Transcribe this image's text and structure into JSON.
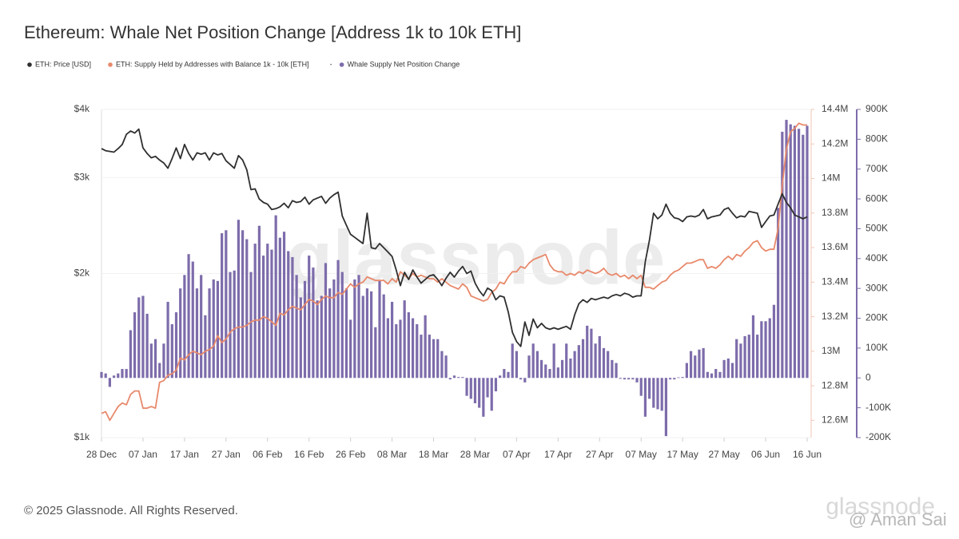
{
  "chart_data": {
    "type": "combo",
    "title": "Ethereum: Whale Net Position Change [Address 1k to 10k ETH]",
    "legend_separator": "-",
    "watermark": "glassnode",
    "footer": "© 2025 Glassnode. All Rights Reserved.",
    "footer_logo": "glassnode",
    "footer_credit": "@ Aman Sai",
    "yscale": "log",
    "grid": true,
    "categories": [
      "28 Dec",
      null,
      null,
      null,
      null,
      null,
      null,
      null,
      null,
      null,
      "07 Jan",
      null,
      null,
      null,
      null,
      null,
      null,
      null,
      null,
      null,
      "17 Jan",
      null,
      null,
      null,
      null,
      null,
      null,
      null,
      null,
      null,
      "27 Jan",
      null,
      null,
      null,
      null,
      null,
      null,
      null,
      null,
      null,
      "06 Feb",
      null,
      null,
      null,
      null,
      null,
      null,
      null,
      null,
      null,
      "16 Feb",
      null,
      null,
      null,
      null,
      null,
      null,
      null,
      null,
      null,
      "26 Feb",
      null,
      null,
      null,
      null,
      null,
      null,
      null,
      null,
      null,
      "08 Mar",
      null,
      null,
      null,
      null,
      null,
      null,
      null,
      null,
      null,
      "18 Mar",
      null,
      null,
      null,
      null,
      null,
      null,
      null,
      null,
      null,
      "28 Mar",
      null,
      null,
      null,
      null,
      null,
      null,
      null,
      null,
      null,
      "07 Apr",
      null,
      null,
      null,
      null,
      null,
      null,
      null,
      null,
      null,
      "17 Apr",
      null,
      null,
      null,
      null,
      null,
      null,
      null,
      null,
      null,
      "27 Apr",
      null,
      null,
      null,
      null,
      null,
      null,
      null,
      null,
      null,
      "07 May",
      null,
      null,
      null,
      null,
      null,
      null,
      null,
      null,
      null,
      "17 May",
      null,
      null,
      null,
      null,
      null,
      null,
      null,
      null,
      null,
      "27 May",
      null,
      null,
      null,
      null,
      null,
      null,
      null,
      null,
      null,
      "06 Jun",
      null,
      null,
      null,
      null,
      null,
      null,
      null,
      null,
      null,
      "16 Jun"
    ],
    "ylim": [
      1000,
      4000
    ],
    "yticks": [
      {
        "value": 1000,
        "label": "$1k"
      },
      {
        "value": 2000,
        "label": "$2k"
      },
      {
        "value": 3000,
        "label": "$3k"
      },
      {
        "value": 4000,
        "label": "$4k"
      }
    ],
    "y2lim": [
      12500000,
      14400000
    ],
    "y2ticks": [
      {
        "value": 12600000,
        "label": "12.6M"
      },
      {
        "value": 12800000,
        "label": "12.8M"
      },
      {
        "value": 13000000,
        "label": "13M"
      },
      {
        "value": 13200000,
        "label": "13.2M"
      },
      {
        "value": 13400000,
        "label": "13.4M"
      },
      {
        "value": 13600000,
        "label": "13.6M"
      },
      {
        "value": 13800000,
        "label": "13.8M"
      },
      {
        "value": 14000000,
        "label": "14M"
      },
      {
        "value": 14200000,
        "label": "14.2M"
      },
      {
        "value": 14400000,
        "label": "14.4M"
      }
    ],
    "y3lim": [
      -200000,
      900000
    ],
    "y3ticks": [
      {
        "value": -200000,
        "label": "-200K"
      },
      {
        "value": -100000,
        "label": "-100K"
      },
      0,
      {
        "value": 100000,
        "label": "100K"
      },
      {
        "value": 200000,
        "label": "200K"
      },
      {
        "value": 300000,
        "label": "300K"
      },
      {
        "value": 400000,
        "label": "400K"
      },
      {
        "value": 500000,
        "label": "500K"
      },
      {
        "value": 600000,
        "label": "600K"
      },
      {
        "value": 700000,
        "label": "700K"
      },
      {
        "value": 800000,
        "label": "800K"
      },
      {
        "value": 900000,
        "label": "900K"
      }
    ],
    "series": [
      {
        "name": "ETH: Price [USD]",
        "type": "line",
        "axis": "y",
        "color": "#2f2f2f",
        "values": [
          3390,
          3360,
          3350,
          3340,
          3390,
          3450,
          3600,
          3650,
          3620,
          3680,
          3400,
          3320,
          3260,
          3280,
          3230,
          3190,
          3120,
          3250,
          3400,
          3250,
          3450,
          3320,
          3230,
          3330,
          3310,
          3330,
          3230,
          3330,
          3300,
          3320,
          3220,
          3170,
          3120,
          3290,
          3230,
          3100,
          2850,
          2860,
          2740,
          2700,
          2680,
          2620,
          2630,
          2650,
          2690,
          2640,
          2720,
          2700,
          2710,
          2760,
          2680,
          2730,
          2750,
          2770,
          2690,
          2750,
          2790,
          2820,
          2550,
          2450,
          2360,
          2330,
          2300,
          2270,
          2580,
          2230,
          2220,
          2270,
          2230,
          2190,
          2150,
          2030,
          1900,
          2010,
          1950,
          2030,
          1970,
          1920,
          1950,
          1980,
          1990,
          1950,
          1900,
          1960,
          2010,
          1970,
          2020,
          2060,
          2000,
          2020,
          1920,
          1860,
          1820,
          1880,
          1860,
          1790,
          1820,
          1810,
          1700,
          1560,
          1500,
          1470,
          1630,
          1540,
          1650,
          1590,
          1620,
          1590,
          1580,
          1590,
          1580,
          1590,
          1600,
          1580,
          1680,
          1760,
          1790,
          1770,
          1800,
          1790,
          1800,
          1810,
          1800,
          1820,
          1830,
          1820,
          1840,
          1830,
          1810,
          1820,
          1820,
          2100,
          2300,
          2580,
          2520,
          2560,
          2680,
          2580,
          2530,
          2520,
          2490,
          2540,
          2550,
          2540,
          2560,
          2620,
          2520,
          2540,
          2550,
          2560,
          2620,
          2640,
          2580,
          2530,
          2550,
          2540,
          2600,
          2590,
          2580,
          2430,
          2490,
          2550,
          2560,
          2680,
          2800,
          2700,
          2640,
          2560,
          2540,
          2520,
          2540
        ]
      },
      {
        "name": "ETH: Supply Held by Addresses with Balance 1k - 10k [ETH]",
        "type": "line",
        "axis": "y2",
        "color": "#e8896b",
        "values": [
          12640000,
          12650000,
          12600000,
          12640000,
          12680000,
          12700000,
          12690000,
          12750000,
          12770000,
          12770000,
          12670000,
          12670000,
          12680000,
          12670000,
          12820000,
          12830000,
          12860000,
          12870000,
          12890000,
          12960000,
          12950000,
          12980000,
          13000000,
          12990000,
          12980000,
          13000000,
          13010000,
          13030000,
          13090000,
          13050000,
          13070000,
          13110000,
          13130000,
          13140000,
          13140000,
          13150000,
          13170000,
          13180000,
          13180000,
          13200000,
          13190000,
          13170000,
          13150000,
          13220000,
          13210000,
          13240000,
          13260000,
          13250000,
          13240000,
          13270000,
          13300000,
          13290000,
          13270000,
          13300000,
          13320000,
          13310000,
          13310000,
          13340000,
          13330000,
          13360000,
          13390000,
          13370000,
          13390000,
          13400000,
          13430000,
          13420000,
          13410000,
          13410000,
          13410000,
          13390000,
          13420000,
          13400000,
          13460000,
          13440000,
          13420000,
          13450000,
          13430000,
          13440000,
          13430000,
          13420000,
          13420000,
          13400000,
          13420000,
          13400000,
          13380000,
          13370000,
          13360000,
          13390000,
          13370000,
          13320000,
          13310000,
          13300000,
          13290000,
          13300000,
          13340000,
          13360000,
          13400000,
          13390000,
          13430000,
          13460000,
          13460000,
          13490000,
          13480000,
          13510000,
          13530000,
          13540000,
          13550000,
          13560000,
          13500000,
          13470000,
          13460000,
          13460000,
          13440000,
          13450000,
          13440000,
          13460000,
          13450000,
          13470000,
          13460000,
          13450000,
          13460000,
          13480000,
          13450000,
          13440000,
          13450000,
          13430000,
          13440000,
          13420000,
          13440000,
          13420000,
          13440000,
          13370000,
          13370000,
          13360000,
          13380000,
          13400000,
          13410000,
          13440000,
          13460000,
          13470000,
          13490000,
          13510000,
          13510000,
          13520000,
          13530000,
          13530000,
          13480000,
          13490000,
          13480000,
          13500000,
          13530000,
          13550000,
          13530000,
          13560000,
          13550000,
          13580000,
          13600000,
          13630000,
          13640000,
          13600000,
          13580000,
          13590000,
          13590000,
          13710000,
          13960000,
          14170000,
          14270000,
          14290000,
          14320000,
          14310000,
          14310000
        ]
      },
      {
        "name": "Whale Supply Net Position Change",
        "type": "bar",
        "axis": "y3",
        "color": "#7d6cab",
        "values": [
          20000,
          15000,
          -30000,
          8000,
          15000,
          30000,
          30000,
          160000,
          220000,
          270000,
          275000,
          215000,
          115000,
          130000,
          50000,
          115000,
          255000,
          180000,
          220000,
          300000,
          345000,
          415000,
          390000,
          300000,
          345000,
          210000,
          300000,
          330000,
          325000,
          485000,
          495000,
          355000,
          360000,
          530000,
          495000,
          465000,
          355000,
          450000,
          510000,
          410000,
          450000,
          430000,
          545000,
          470000,
          490000,
          425000,
          405000,
          345000,
          270000,
          325000,
          410000,
          370000,
          260000,
          275000,
          385000,
          300000,
          330000,
          395000,
          355000,
          300000,
          195000,
          330000,
          345000,
          275000,
          300000,
          290000,
          170000,
          325000,
          280000,
          200000,
          255000,
          180000,
          195000,
          260000,
          220000,
          200000,
          180000,
          145000,
          210000,
          145000,
          130000,
          130000,
          90000,
          75000,
          -5000,
          8000,
          3000,
          3000,
          -60000,
          -70000,
          -85000,
          -100000,
          -130000,
          -65000,
          -110000,
          -45000,
          8000,
          30000,
          20000,
          115000,
          90000,
          -5000,
          -15000,
          75000,
          115000,
          90000,
          60000,
          45000,
          30000,
          115000,
          35000,
          60000,
          115000,
          65000,
          90000,
          110000,
          130000,
          175000,
          165000,
          115000,
          140000,
          100000,
          90000,
          60000,
          50000,
          -3000,
          -5000,
          -5000,
          -5000,
          -15000,
          -60000,
          -130000,
          -70000,
          -100000,
          -105000,
          -110000,
          -195000,
          -5000,
          -5000,
          2000,
          3000,
          50000,
          90000,
          75000,
          95000,
          100000,
          20000,
          15000,
          30000,
          20000,
          60000,
          65000,
          50000,
          130000,
          115000,
          140000,
          145000,
          210000,
          145000,
          190000,
          190000,
          200000,
          245000,
          570000,
          825000,
          865000,
          850000,
          845000,
          835000,
          815000,
          845000
        ]
      }
    ]
  }
}
